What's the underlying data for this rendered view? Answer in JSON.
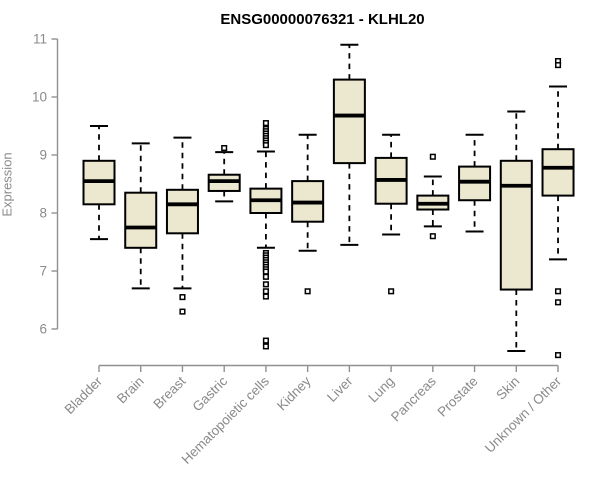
{
  "title": "ENSG00000076321 - KLHL20",
  "ylabel": "Expression",
  "colors": {
    "box_fill": "#ece7cf",
    "box_border": "#000000",
    "median": "#000000",
    "whisker": "#000000",
    "outlier_fill": "#ffffff",
    "axis": "#909090",
    "tick_label": "#8a8a8a",
    "title": "#000000",
    "background": "#ffffff"
  },
  "chart_data": {
    "type": "boxplot",
    "title": "ENSG00000076321 - KLHL20",
    "xlabel": "",
    "ylabel": "Expression",
    "ylim": [
      6,
      11
    ],
    "yticks": [
      6,
      7,
      8,
      9,
      10,
      11
    ],
    "grid": false,
    "legend": false,
    "categories": [
      "Bladder",
      "Brain",
      "Breast",
      "Gastric",
      "Hematopoietic cells",
      "Kidney",
      "Liver",
      "Lung",
      "Pancreas",
      "Prostate",
      "Skin",
      "Unknown / Other"
    ],
    "series": [
      {
        "label": "Bladder",
        "low": 7.55,
        "q1": 8.15,
        "median": 8.55,
        "q3": 8.9,
        "high": 9.5,
        "outliers": []
      },
      {
        "label": "Brain",
        "low": 6.7,
        "q1": 7.4,
        "median": 7.75,
        "q3": 8.35,
        "high": 9.2,
        "outliers": []
      },
      {
        "label": "Breast",
        "low": 6.7,
        "q1": 7.65,
        "median": 8.15,
        "q3": 8.4,
        "high": 9.3,
        "outliers": [
          6.55,
          6.3
        ]
      },
      {
        "label": "Gastric",
        "low": 8.2,
        "q1": 8.38,
        "median": 8.55,
        "q3": 8.66,
        "high": 9.05,
        "outliers": [
          9.12
        ]
      },
      {
        "label": "Hematopoietic cells",
        "low": 7.4,
        "q1": 8.0,
        "median": 8.22,
        "q3": 8.42,
        "high": 9.06,
        "outliers": [
          9.55,
          9.45,
          9.41,
          9.37,
          9.33,
          9.29,
          9.25,
          9.21,
          9.17,
          7.31,
          7.27,
          7.23,
          7.19,
          7.15,
          7.11,
          7.07,
          7.03,
          6.99,
          6.9,
          6.77,
          6.65,
          6.56,
          5.8,
          5.7
        ]
      },
      {
        "label": "Kidney",
        "low": 7.35,
        "q1": 7.85,
        "median": 8.18,
        "q3": 8.55,
        "high": 9.35,
        "outliers": [
          6.65
        ]
      },
      {
        "label": "Liver",
        "low": 7.45,
        "q1": 8.86,
        "median": 9.68,
        "q3": 10.3,
        "high": 10.9,
        "outliers": []
      },
      {
        "label": "Lung",
        "low": 7.63,
        "q1": 8.16,
        "median": 8.57,
        "q3": 8.95,
        "high": 9.35,
        "outliers": [
          6.65
        ]
      },
      {
        "label": "Pancreas",
        "low": 7.77,
        "q1": 8.06,
        "median": 8.16,
        "q3": 8.3,
        "high": 8.63,
        "outliers": [
          8.97,
          7.6
        ]
      },
      {
        "label": "Prostate",
        "low": 7.68,
        "q1": 8.22,
        "median": 8.54,
        "q3": 8.8,
        "high": 9.35,
        "outliers": []
      },
      {
        "label": "Skin",
        "low": 5.62,
        "q1": 6.68,
        "median": 8.47,
        "q3": 8.9,
        "high": 9.75,
        "outliers": []
      },
      {
        "label": "Unknown / Other",
        "low": 7.2,
        "q1": 8.3,
        "median": 8.78,
        "q3": 9.1,
        "high": 10.18,
        "outliers": [
          10.62,
          10.55,
          6.65,
          6.46,
          5.55
        ]
      }
    ]
  }
}
